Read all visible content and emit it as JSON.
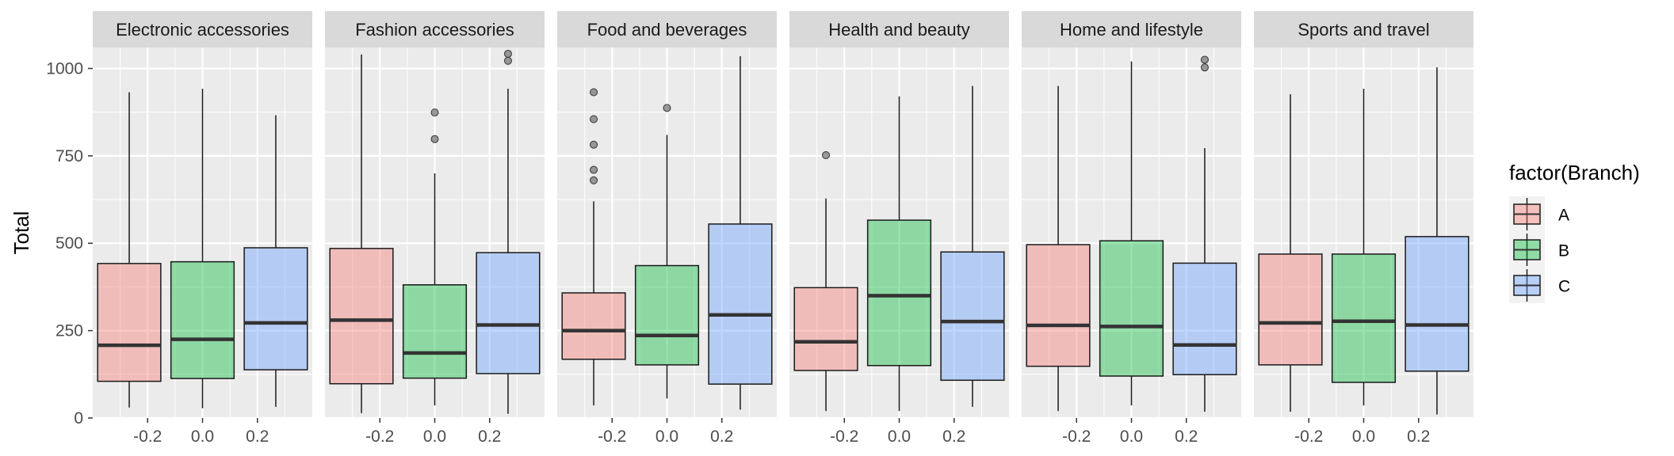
{
  "chart_data": {
    "type": "boxplot",
    "ylabel": "Total",
    "ylim": [
      0,
      1060
    ],
    "xlim": [
      -0.4,
      0.4
    ],
    "yticks": [
      0,
      250,
      500,
      750,
      1000
    ],
    "xticks": [
      "-0.2",
      "0.0",
      "0.2"
    ],
    "xtick_values": [
      -0.2,
      0.0,
      0.2
    ],
    "legend": {
      "title": "factor(Branch)",
      "placement": "right",
      "entries": [
        {
          "label": "A",
          "color": "#F8766D"
        },
        {
          "label": "B",
          "color": "#00BA38"
        },
        {
          "label": "C",
          "color": "#619CFF"
        }
      ]
    },
    "panels": [
      {
        "name": "Electronic accessories",
        "boxes": [
          {
            "branch": "A",
            "x": -0.267,
            "q1": 105,
            "median": 208,
            "q3": 442,
            "lower": 30,
            "upper": 932,
            "outliers": []
          },
          {
            "branch": "B",
            "x": 0.0,
            "q1": 113,
            "median": 225,
            "q3": 447,
            "lower": 28,
            "upper": 942,
            "outliers": []
          },
          {
            "branch": "C",
            "x": 0.267,
            "q1": 138,
            "median": 272,
            "q3": 487,
            "lower": 32,
            "upper": 866,
            "outliers": []
          }
        ]
      },
      {
        "name": "Fashion accessories",
        "boxes": [
          {
            "branch": "A",
            "x": -0.267,
            "q1": 98,
            "median": 280,
            "q3": 485,
            "lower": 14,
            "upper": 1040,
            "outliers": []
          },
          {
            "branch": "B",
            "x": 0.0,
            "q1": 114,
            "median": 186,
            "q3": 381,
            "lower": 36,
            "upper": 700,
            "outliers": [
              798,
              874
            ]
          },
          {
            "branch": "C",
            "x": 0.267,
            "q1": 127,
            "median": 266,
            "q3": 473,
            "lower": 12,
            "upper": 942,
            "outliers": [
              1022,
              1042
            ]
          }
        ]
      },
      {
        "name": "Food and beverages",
        "boxes": [
          {
            "branch": "A",
            "x": -0.267,
            "q1": 168,
            "median": 250,
            "q3": 358,
            "lower": 36,
            "upper": 620,
            "outliers": [
              680,
              710,
              782,
              855,
              932
            ]
          },
          {
            "branch": "B",
            "x": 0.0,
            "q1": 152,
            "median": 236,
            "q3": 436,
            "lower": 56,
            "upper": 810,
            "outliers": [
              887
            ]
          },
          {
            "branch": "C",
            "x": 0.267,
            "q1": 97,
            "median": 295,
            "q3": 555,
            "lower": 24,
            "upper": 1035,
            "outliers": []
          }
        ]
      },
      {
        "name": "Health and beauty",
        "boxes": [
          {
            "branch": "A",
            "x": -0.267,
            "q1": 136,
            "median": 218,
            "q3": 373,
            "lower": 20,
            "upper": 628,
            "outliers": [
              752
            ]
          },
          {
            "branch": "B",
            "x": 0.0,
            "q1": 150,
            "median": 350,
            "q3": 566,
            "lower": 20,
            "upper": 920,
            "outliers": []
          },
          {
            "branch": "C",
            "x": 0.267,
            "q1": 108,
            "median": 276,
            "q3": 475,
            "lower": 32,
            "upper": 950,
            "outliers": []
          }
        ]
      },
      {
        "name": "Home and lifestyle",
        "boxes": [
          {
            "branch": "A",
            "x": -0.267,
            "q1": 148,
            "median": 265,
            "q3": 496,
            "lower": 20,
            "upper": 950,
            "outliers": []
          },
          {
            "branch": "B",
            "x": 0.0,
            "q1": 120,
            "median": 262,
            "q3": 507,
            "lower": 36,
            "upper": 1020,
            "outliers": []
          },
          {
            "branch": "C",
            "x": 0.267,
            "q1": 124,
            "median": 209,
            "q3": 443,
            "lower": 18,
            "upper": 772,
            "outliers": [
              1003,
              1025
            ]
          }
        ]
      },
      {
        "name": "Sports and travel",
        "boxes": [
          {
            "branch": "A",
            "x": -0.267,
            "q1": 152,
            "median": 272,
            "q3": 469,
            "lower": 18,
            "upper": 926,
            "outliers": []
          },
          {
            "branch": "B",
            "x": 0.0,
            "q1": 102,
            "median": 277,
            "q3": 469,
            "lower": 36,
            "upper": 942,
            "outliers": []
          },
          {
            "branch": "C",
            "x": 0.267,
            "q1": 134,
            "median": 266,
            "q3": 519,
            "lower": 10,
            "upper": 1003,
            "outliers": []
          }
        ]
      }
    ]
  }
}
